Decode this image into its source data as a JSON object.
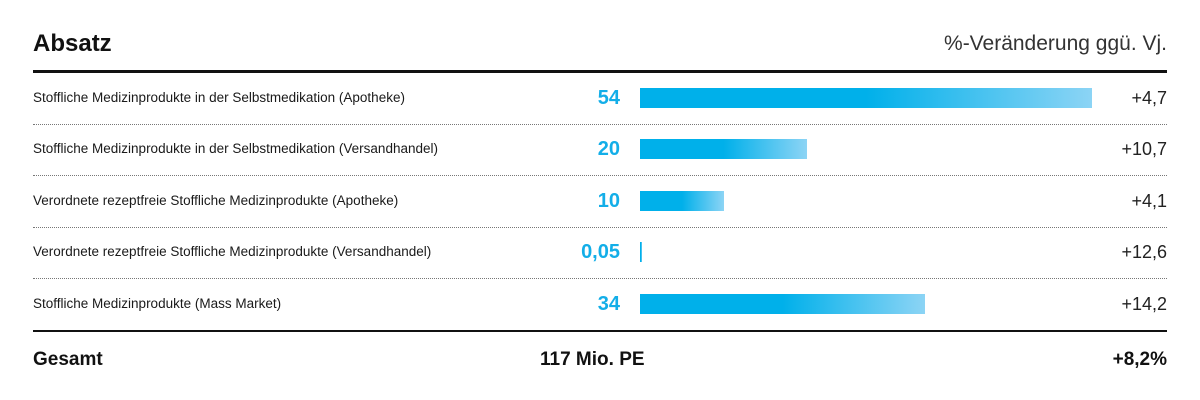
{
  "chart_data": {
    "type": "bar",
    "title": "Absatz",
    "subtitle": "%-Veränderung ggü. Vj.",
    "categories": [
      "Stoffliche Medizinprodukte in der Selbstmedikation (Apotheke)",
      "Stoffliche Medizinprodukte in der Selbstmedikation (Versandhandel)",
      "Verordnete rezeptfreie Stoffliche Medizinprodukte (Apotheke)",
      "Verordnete rezeptfreie Stoffliche Medizinprodukte (Versandhandel)",
      "Stoffliche Medizinprodukte (Mass Market)"
    ],
    "values": [
      54,
      20,
      10,
      0.05,
      34
    ],
    "value_labels": [
      "54",
      "20",
      "10",
      "0,05",
      "34"
    ],
    "changes": [
      "+4,7",
      "+10,7",
      "+4,1",
      "+12,6",
      "+14,2"
    ],
    "total": {
      "label": "Gesamt",
      "value": "117 Mio. PE",
      "change": "+8,2%"
    },
    "colors": {
      "bar": "#00b0ea",
      "bar_fade": "#8cd4f5",
      "value_text": "#13aee8"
    }
  }
}
